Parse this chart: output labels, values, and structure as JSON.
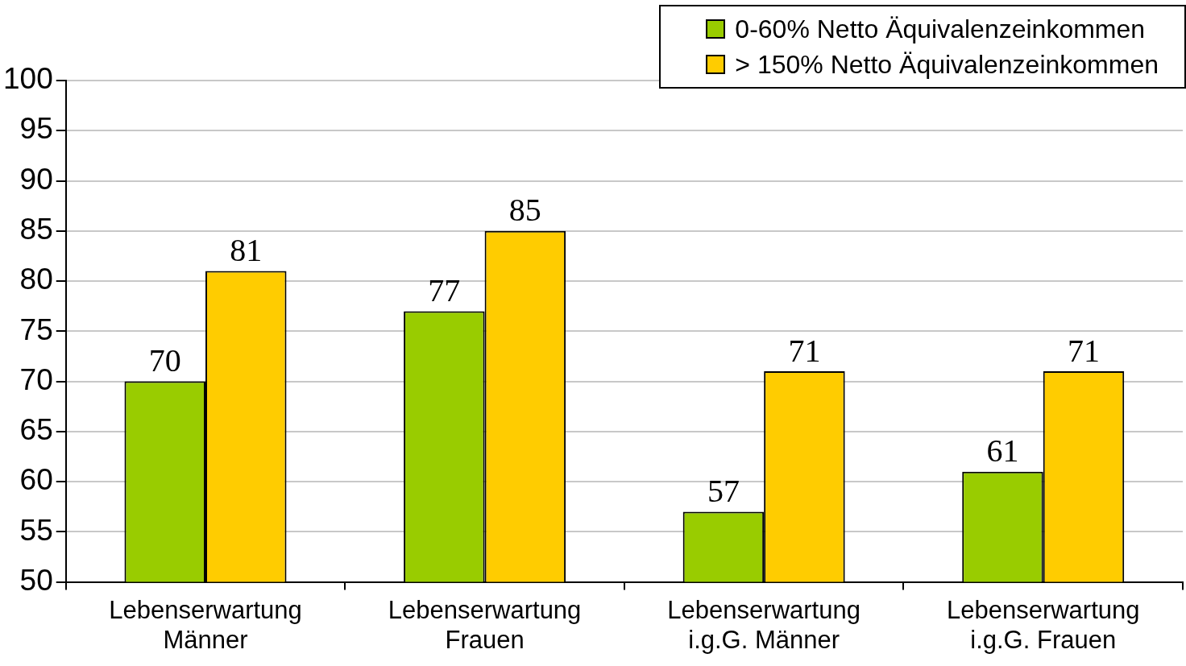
{
  "chart_data": {
    "type": "bar",
    "categories": [
      "Lebenserwartung Männer",
      "Lebenserwartung Frauen",
      "Lebenserwartung i.g.G. Männer",
      "Lebenserwartung i.g.G. Frauen"
    ],
    "series": [
      {
        "name": "0-60% Netto Äquivalenzeinkommen",
        "color": "#99cc00",
        "values": [
          70,
          77,
          57,
          61
        ]
      },
      {
        "name": "> 150% Netto Äquivalenzeinkommen",
        "color": "#ffcc00",
        "values": [
          81,
          85,
          71,
          71
        ]
      }
    ],
    "ylim": [
      50,
      100
    ],
    "yticks": [
      50,
      55,
      60,
      65,
      70,
      75,
      80,
      85,
      90,
      95,
      100
    ],
    "grid": "y",
    "legend": "top right",
    "data_labels": true
  }
}
